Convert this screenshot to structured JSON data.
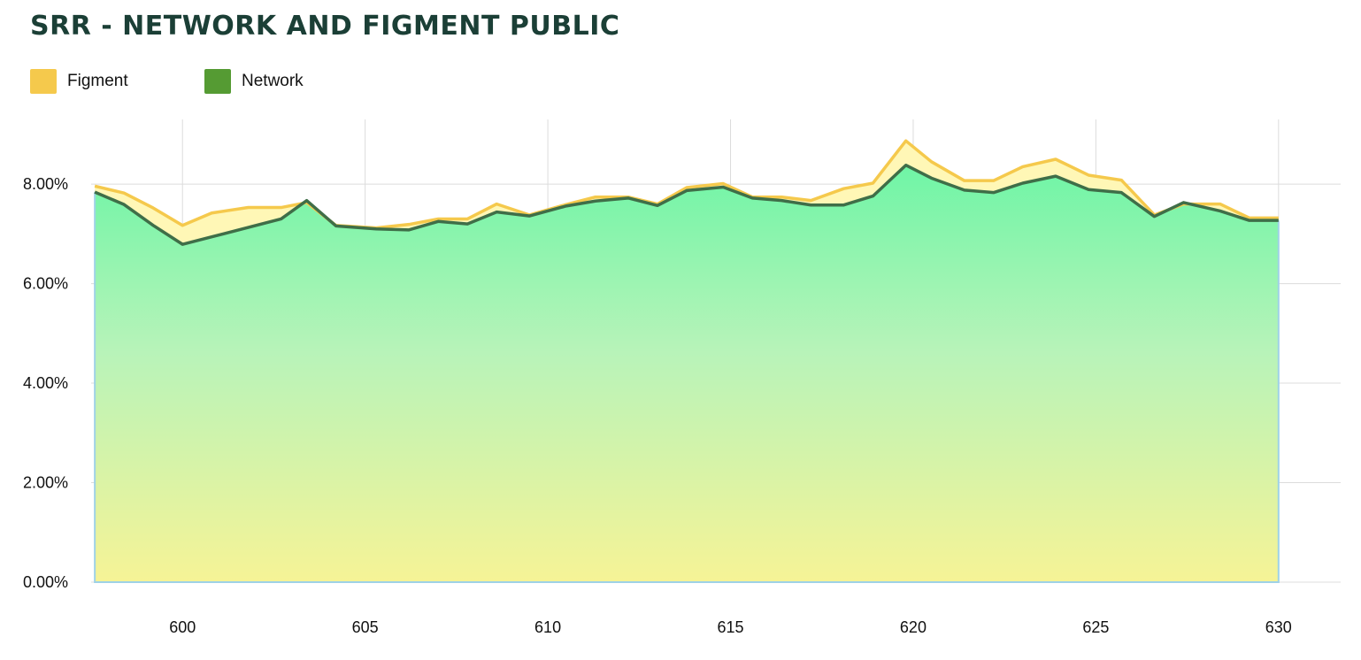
{
  "chart_data": {
    "type": "area",
    "title": "SRR - NETWORK AND FIGMENT PUBLIC",
    "xlabel": "",
    "ylabel": "",
    "legend_position": "top-left",
    "grid": true,
    "xlim": [
      597.5,
      631.7
    ],
    "ylim": [
      0,
      9.3
    ],
    "x_ticks": [
      600,
      605,
      610,
      615,
      620,
      625,
      630
    ],
    "y_ticks": [
      0,
      2,
      4,
      6,
      8
    ],
    "x_tick_labels": [
      "600",
      "605",
      "610",
      "615",
      "620",
      "625",
      "630"
    ],
    "y_tick_labels": [
      "0.00%",
      "2.00%",
      "4.00%",
      "6.00%",
      "8.00%"
    ],
    "legend": [
      {
        "name": "Figment",
        "color": "#f5c94c"
      },
      {
        "name": "Network",
        "color": "#559b33"
      }
    ],
    "x": [
      597.6,
      598.4,
      599.2,
      600,
      600.8,
      601.8,
      602.7,
      603.4,
      604.2,
      605.3,
      606.2,
      607,
      607.8,
      608.6,
      609.5,
      610.5,
      611.3,
      612.2,
      613,
      613.8,
      614.8,
      615.6,
      616.4,
      617.2,
      618.1,
      618.9,
      619.8,
      620.5,
      621.4,
      622.2,
      623,
      623.9,
      624.8,
      625.7,
      626.6,
      627.4,
      628.4,
      629.2,
      630
    ],
    "series": [
      {
        "name": "Figment",
        "color": "#f5c94c",
        "values": [
          7.96,
          7.82,
          7.52,
          7.17,
          7.42,
          7.53,
          7.53,
          7.63,
          7.17,
          7.12,
          7.19,
          7.3,
          7.3,
          7.6,
          7.38,
          7.59,
          7.74,
          7.74,
          7.6,
          7.93,
          8.01,
          7.74,
          7.74,
          7.67,
          7.91,
          8.02,
          8.87,
          8.45,
          8.07,
          8.07,
          8.35,
          8.5,
          8.18,
          8.08,
          7.38,
          7.6,
          7.6,
          7.32,
          7.32
        ]
      },
      {
        "name": "Network",
        "color": "#3f6e48",
        "values": [
          7.84,
          7.59,
          7.17,
          6.79,
          6.94,
          7.13,
          7.3,
          7.67,
          7.16,
          7.1,
          7.08,
          7.25,
          7.2,
          7.44,
          7.36,
          7.56,
          7.66,
          7.72,
          7.57,
          7.87,
          7.94,
          7.72,
          7.67,
          7.58,
          7.58,
          7.76,
          8.38,
          8.12,
          7.88,
          7.83,
          8.02,
          8.16,
          7.89,
          7.83,
          7.35,
          7.63,
          7.46,
          7.27,
          7.27
        ]
      }
    ]
  }
}
